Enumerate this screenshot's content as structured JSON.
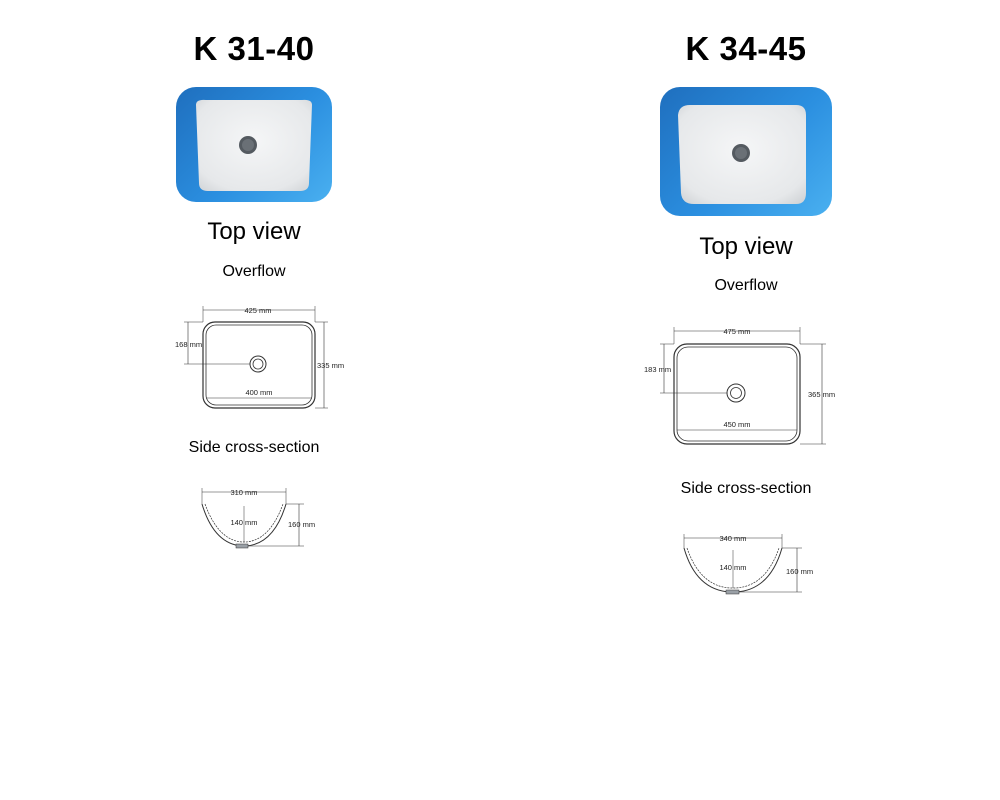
{
  "products": [
    {
      "model": "K 31-40",
      "top_view_label": "Top view",
      "overflow_label": "Overflow",
      "cross_section_label": "Side cross-section",
      "top_dims": {
        "width": "425 mm",
        "overflow_offset": "168 mm",
        "depth": "335 mm",
        "inner_width": "400 mm"
      },
      "side_dims": {
        "top_width": "310 mm",
        "inner_depth": "140 mm",
        "height": "160 mm"
      }
    },
    {
      "model": "K 34-45",
      "top_view_label": "Top view",
      "overflow_label": "Overflow",
      "cross_section_label": "Side cross-section",
      "top_dims": {
        "width": "475 mm",
        "overflow_offset": "183 mm",
        "depth": "365 mm",
        "inner_width": "450 mm"
      },
      "side_dims": {
        "top_width": "340 mm",
        "inner_depth": "140 mm",
        "height": "160 mm"
      }
    }
  ],
  "colors": {
    "photo_bg": "#2b8fe0",
    "basin": "#f2f3f4",
    "drain": "#555a60",
    "line": "#333333"
  }
}
